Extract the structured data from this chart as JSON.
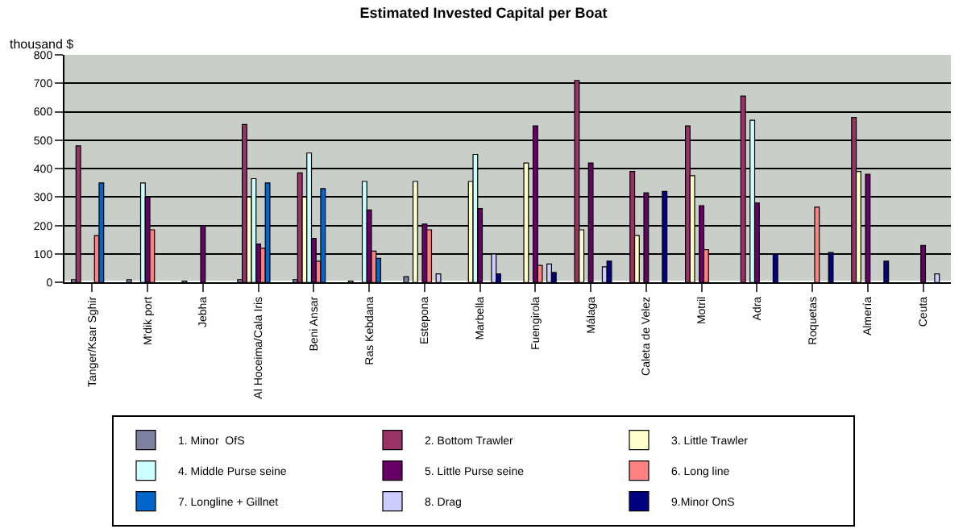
{
  "chart_data": {
    "type": "bar",
    "title": "Estimated Invested Capital per Boat",
    "ylabel": "thousand $",
    "categories": [
      "Tanger/Ksar Sghir",
      "M'dik port",
      "Jebha",
      "Al Hoceima/Cala Iris",
      "Beni Ansar",
      "Ras Kebdana",
      "Estepona",
      "Marbella",
      "Fuengirola",
      "Málaga",
      "Caleta de Velez",
      "Motril",
      "Adra",
      "Roquetas",
      "Almería",
      "Ceuta"
    ],
    "series": [
      {
        "name": "1. Minor  OfS",
        "color": "#8080a0",
        "values": [
          10,
          10,
          5,
          10,
          10,
          5,
          20,
          null,
          null,
          null,
          null,
          null,
          null,
          null,
          null,
          null
        ]
      },
      {
        "name": "2. Bottom Trawler",
        "color": "#993366",
        "values": [
          480,
          null,
          null,
          555,
          385,
          null,
          null,
          null,
          null,
          710,
          390,
          550,
          655,
          null,
          580,
          null
        ]
      },
      {
        "name": "3. Little Trawler",
        "color": "#ffffcc",
        "values": [
          null,
          null,
          null,
          300,
          300,
          null,
          355,
          355,
          420,
          185,
          165,
          375,
          null,
          null,
          390,
          null
        ]
      },
      {
        "name": "4. Middle Purse seine",
        "color": "#ccffff",
        "values": [
          null,
          350,
          null,
          365,
          455,
          355,
          null,
          450,
          null,
          null,
          null,
          null,
          570,
          null,
          null,
          null
        ]
      },
      {
        "name": "5. Little Purse seine",
        "color": "#660066",
        "values": [
          null,
          300,
          200,
          135,
          155,
          255,
          205,
          260,
          550,
          420,
          315,
          270,
          280,
          null,
          380,
          130
        ]
      },
      {
        "name": "6. Long line",
        "color": "#ff8080",
        "values": [
          165,
          185,
          null,
          120,
          75,
          110,
          185,
          null,
          60,
          null,
          null,
          115,
          null,
          265,
          null,
          null
        ]
      },
      {
        "name": "7. Longline + Gillnet",
        "color": "#0066cc",
        "values": [
          350,
          null,
          null,
          350,
          330,
          85,
          null,
          null,
          null,
          null,
          null,
          null,
          null,
          null,
          null,
          null
        ]
      },
      {
        "name": "8. Drag",
        "color": "#ccccff",
        "values": [
          null,
          null,
          null,
          null,
          null,
          null,
          30,
          100,
          65,
          55,
          null,
          null,
          null,
          null,
          null,
          30
        ]
      },
      {
        "name": "9.Minor OnS",
        "color": "#000080",
        "values": [
          null,
          null,
          null,
          null,
          null,
          null,
          null,
          30,
          35,
          75,
          320,
          null,
          100,
          105,
          75,
          null
        ]
      }
    ],
    "ylim": [
      0,
      800
    ],
    "yticks": [
      0,
      100,
      200,
      300,
      400,
      500,
      600,
      700,
      800
    ],
    "grid": "y",
    "legend": "bottom"
  }
}
